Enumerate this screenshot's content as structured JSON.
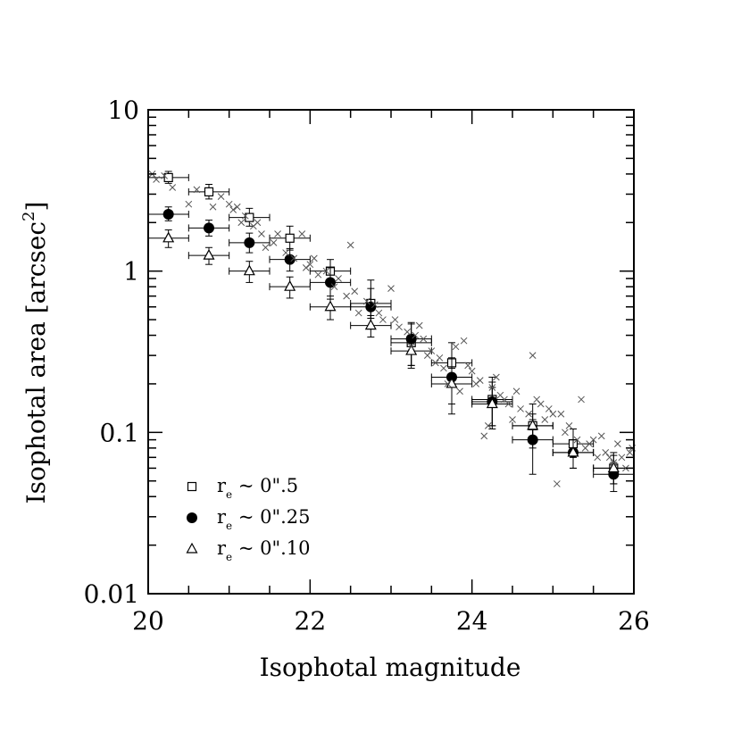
{
  "chart_data": {
    "type": "scatter",
    "title": "",
    "xlabel": "Isophotal magnitude",
    "ylabel": "Isophotal area [arcsec",
    "ylabel_sup": "2",
    "ylabel_close": "]",
    "xlim": [
      20,
      26
    ],
    "ylim": [
      0.01,
      10
    ],
    "yscale": "log",
    "xticks": [
      20,
      22,
      24,
      26
    ],
    "xtick_labels": [
      "20",
      "22",
      "24",
      "26"
    ],
    "yticks": [
      0.01,
      0.1,
      1,
      10
    ],
    "ytick_labels": [
      "0.01",
      "0.1",
      "1",
      "10"
    ],
    "legend_position": "bottom-left",
    "series": [
      {
        "name": "r_e ~ 0''.5",
        "legend_main": "r",
        "legend_sub": "e",
        "legend_rest": " ~ 0\".5",
        "marker": "open-square",
        "x": [
          20.25,
          20.75,
          21.25,
          21.75,
          22.25,
          22.75,
          23.25,
          23.75,
          24.25,
          24.75,
          25.25,
          25.75
        ],
        "y": [
          3.8,
          3.1,
          2.15,
          1.6,
          1.0,
          0.63,
          0.36,
          0.27,
          0.16,
          0.11,
          0.085,
          0.06
        ],
        "xerr": 0.25,
        "yerr_low": [
          0.3,
          0.3,
          0.25,
          0.25,
          0.15,
          0.12,
          0.1,
          0.07,
          0.05,
          0.03,
          0.015,
          0.012
        ],
        "yerr_high": [
          0.35,
          0.35,
          0.3,
          0.3,
          0.18,
          0.15,
          0.11,
          0.09,
          0.06,
          0.04,
          0.02,
          0.015
        ]
      },
      {
        "name": "r_e ~ 0''.25",
        "legend_main": "r",
        "legend_sub": "e",
        "legend_rest": " ~ 0\".25",
        "marker": "filled-circle",
        "x": [
          20.25,
          20.75,
          21.25,
          21.75,
          22.25,
          22.75,
          23.25,
          23.75,
          24.25,
          24.75,
          25.25,
          25.75
        ],
        "y": [
          2.25,
          1.85,
          1.5,
          1.18,
          0.85,
          0.6,
          0.38,
          0.22,
          0.155,
          0.09,
          0.075,
          0.055
        ],
        "xerr": 0.25,
        "yerr_low": [
          0.2,
          0.2,
          0.2,
          0.18,
          0.18,
          0.15,
          0.13,
          0.09,
          0.05,
          0.035,
          0.015,
          0.012
        ],
        "yerr_high": [
          0.25,
          0.22,
          0.22,
          0.2,
          0.2,
          0.28,
          0.1,
          0.07,
          0.05,
          0.03,
          0.015,
          0.01
        ]
      },
      {
        "name": "r_e ~ 0''.10",
        "legend_main": "r",
        "legend_sub": "e",
        "legend_rest": " ~ 0\".10",
        "marker": "open-triangle",
        "x": [
          20.25,
          20.75,
          21.25,
          21.75,
          22.25,
          22.75,
          23.25,
          23.75,
          24.25,
          24.75,
          25.25,
          25.75
        ],
        "y": [
          1.6,
          1.25,
          1.0,
          0.8,
          0.6,
          0.46,
          0.32,
          0.2,
          0.15,
          0.11,
          0.075,
          0.06
        ],
        "xerr": 0.25,
        "yerr_low": [
          0.2,
          0.15,
          0.15,
          0.12,
          0.1,
          0.07,
          0.06,
          0.05,
          0.04,
          0.02,
          0.015,
          0.012
        ],
        "yerr_high": [
          0.2,
          0.15,
          0.15,
          0.12,
          0.1,
          0.07,
          0.06,
          0.05,
          0.04,
          0.02,
          0.015,
          0.012
        ]
      },
      {
        "name": "individual objects",
        "marker": "cross",
        "x": [
          20.05,
          20.1,
          20.2,
          20.3,
          20.5,
          20.6,
          20.8,
          20.9,
          21.0,
          21.05,
          21.1,
          21.15,
          21.2,
          21.3,
          21.35,
          21.4,
          21.45,
          21.55,
          21.6,
          21.7,
          21.8,
          21.9,
          21.95,
          22.0,
          22.05,
          22.1,
          22.2,
          22.3,
          22.35,
          22.45,
          22.5,
          22.55,
          22.6,
          22.7,
          22.8,
          22.85,
          22.9,
          23.0,
          23.05,
          23.1,
          23.2,
          23.25,
          23.3,
          23.35,
          23.4,
          23.45,
          23.5,
          23.55,
          23.6,
          23.65,
          23.7,
          23.8,
          23.85,
          23.9,
          23.95,
          24.0,
          24.05,
          24.1,
          24.15,
          24.2,
          24.25,
          24.3,
          24.35,
          24.4,
          24.45,
          24.5,
          24.55,
          24.6,
          24.7,
          24.75,
          24.8,
          24.85,
          24.9,
          24.95,
          25.0,
          25.05,
          25.1,
          25.15,
          25.2,
          25.3,
          25.35,
          25.4,
          25.45,
          25.5,
          25.55,
          25.6,
          25.65,
          25.7,
          25.75,
          25.8,
          25.85,
          25.9,
          25.95,
          25.98
        ],
        "y": [
          4.0,
          3.7,
          3.9,
          3.3,
          2.6,
          3.2,
          2.5,
          2.9,
          2.6,
          2.4,
          2.5,
          2.0,
          2.2,
          1.9,
          2.0,
          1.7,
          1.4,
          1.5,
          1.7,
          1.3,
          1.2,
          1.7,
          1.05,
          1.1,
          1.2,
          0.95,
          1.0,
          0.8,
          0.9,
          0.7,
          1.45,
          0.75,
          0.55,
          0.65,
          0.62,
          0.55,
          0.5,
          0.78,
          0.5,
          0.45,
          0.42,
          0.34,
          0.4,
          0.46,
          0.38,
          0.3,
          0.32,
          0.27,
          0.29,
          0.25,
          0.2,
          0.34,
          0.18,
          0.37,
          0.26,
          0.24,
          0.2,
          0.21,
          0.095,
          0.11,
          0.19,
          0.22,
          0.17,
          0.16,
          0.15,
          0.12,
          0.18,
          0.14,
          0.13,
          0.3,
          0.16,
          0.15,
          0.12,
          0.14,
          0.13,
          0.048,
          0.13,
          0.1,
          0.11,
          0.09,
          0.16,
          0.08,
          0.085,
          0.09,
          0.07,
          0.095,
          0.075,
          0.07,
          0.065,
          0.085,
          0.07,
          0.06,
          0.075,
          0.08
        ]
      }
    ]
  }
}
